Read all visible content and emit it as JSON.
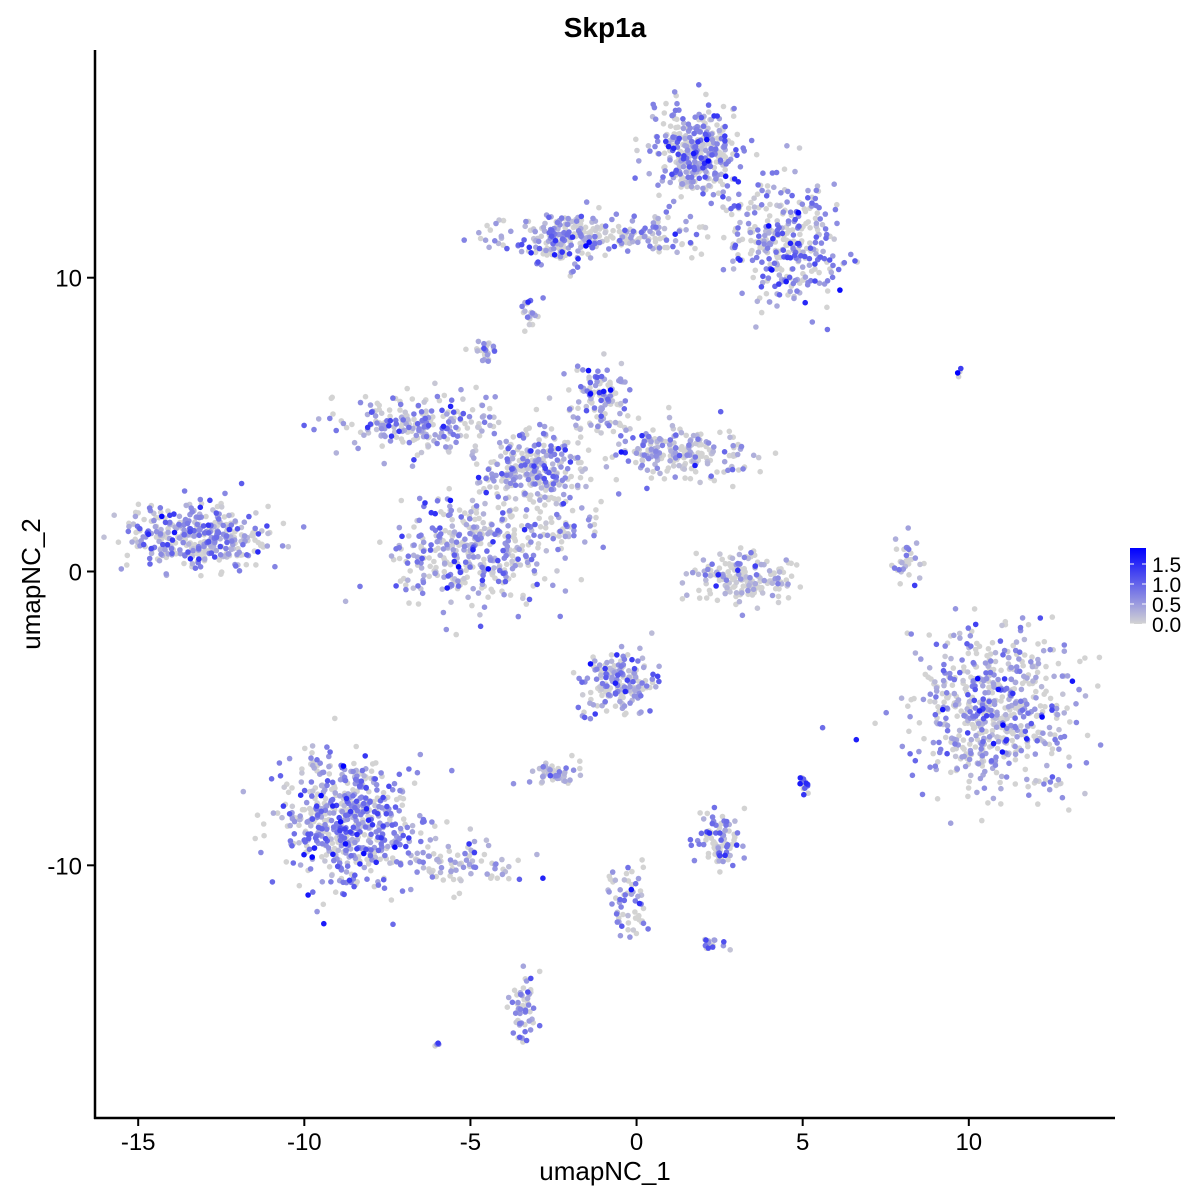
{
  "chart_data": {
    "type": "scatter",
    "title": "Skp1a",
    "xlabel": "umapNC_1",
    "ylabel": "umapNC_2",
    "xlim": [
      -16.3,
      14.4
    ],
    "ylim": [
      -18.6,
      17.75
    ],
    "xticks": [
      -15,
      -10,
      -5,
      0,
      5,
      10
    ],
    "xtick_labels": [
      "-15",
      "-10",
      "-5",
      "0",
      "5",
      "10"
    ],
    "yticks": [
      -10,
      0,
      10
    ],
    "ytick_labels": [
      "-10",
      "0",
      "10"
    ],
    "grid": false,
    "legend": {
      "placement": "right",
      "type": "colorbar",
      "min": 0.0,
      "max": 1.9,
      "ticks": [
        0.0,
        0.5,
        1.0,
        1.5
      ],
      "tick_labels": [
        "0.0",
        "0.5",
        "1.0",
        "1.5"
      ],
      "low_color": "#d3d3d3",
      "high_color": "#0000ff"
    },
    "point_color_scale": {
      "low": "#d3d3d3",
      "high": "#0000ff"
    },
    "seed": 7,
    "clusters": [
      {
        "cx": 1.8,
        "cy": 14.2,
        "sx": 0.7,
        "sy": 0.75,
        "n": 380,
        "expr": 0.6
      },
      {
        "cx": 4.5,
        "cy": 11.2,
        "sx": 0.8,
        "sy": 1.1,
        "n": 320,
        "expr": 0.6
      },
      {
        "cx": -0.6,
        "cy": 11.4,
        "sx": 1.9,
        "sy": 0.35,
        "n": 200,
        "expr": 0.45
      },
      {
        "cx": -2.2,
        "cy": 11.3,
        "sx": 0.5,
        "sy": 0.5,
        "n": 120,
        "expr": 0.6
      },
      {
        "cx": -3.2,
        "cy": 8.8,
        "sx": 0.2,
        "sy": 0.3,
        "n": 20,
        "expr": 0.5
      },
      {
        "cx": -4.5,
        "cy": 7.4,
        "sx": 0.2,
        "sy": 0.2,
        "n": 25,
        "expr": 0.5
      },
      {
        "cx": -3.2,
        "cy": 3.4,
        "sx": 0.8,
        "sy": 0.7,
        "n": 300,
        "expr": 0.5
      },
      {
        "cx": -6.6,
        "cy": 5.1,
        "sx": 1.2,
        "sy": 0.5,
        "n": 220,
        "expr": 0.45
      },
      {
        "cx": 1.3,
        "cy": 4.1,
        "sx": 1.0,
        "sy": 0.5,
        "n": 220,
        "expr": 0.3
      },
      {
        "cx": -1.2,
        "cy": 5.8,
        "sx": 0.5,
        "sy": 0.6,
        "n": 120,
        "expr": 0.5
      },
      {
        "cx": -5.0,
        "cy": 0.7,
        "sx": 1.2,
        "sy": 0.9,
        "n": 380,
        "expr": 0.5
      },
      {
        "cx": -2.2,
        "cy": 1.4,
        "sx": 0.7,
        "sy": 0.35,
        "n": 40,
        "expr": 0.5
      },
      {
        "cx": -13.2,
        "cy": 1.2,
        "sx": 1.1,
        "sy": 0.55,
        "n": 380,
        "expr": 0.55
      },
      {
        "cx": 3.2,
        "cy": -0.2,
        "sx": 0.7,
        "sy": 0.45,
        "n": 170,
        "expr": 0.2
      },
      {
        "cx": 8.1,
        "cy": 0.4,
        "sx": 0.2,
        "sy": 0.4,
        "n": 30,
        "expr": 0.4
      },
      {
        "cx": 10.7,
        "cy": -4.8,
        "sx": 1.2,
        "sy": 1.3,
        "n": 620,
        "expr": 0.45
      },
      {
        "cx": -8.7,
        "cy": -8.4,
        "sx": 1.0,
        "sy": 1.1,
        "n": 620,
        "expr": 0.65
      },
      {
        "cx": -5.3,
        "cy": -9.9,
        "sx": 1.0,
        "sy": 0.35,
        "n": 90,
        "expr": 0.45
      },
      {
        "cx": -0.5,
        "cy": -3.9,
        "sx": 0.5,
        "sy": 0.55,
        "n": 180,
        "expr": 0.55
      },
      {
        "cx": -2.5,
        "cy": -6.9,
        "sx": 0.4,
        "sy": 0.2,
        "n": 50,
        "expr": 0.4
      },
      {
        "cx": 2.5,
        "cy": -9.2,
        "sx": 0.35,
        "sy": 0.45,
        "n": 90,
        "expr": 0.65
      },
      {
        "cx": 5.1,
        "cy": -7.3,
        "sx": 0.1,
        "sy": 0.2,
        "n": 15,
        "expr": 1.2
      },
      {
        "cx": -0.2,
        "cy": -11.2,
        "sx": 0.35,
        "sy": 0.7,
        "n": 60,
        "expr": 0.6
      },
      {
        "cx": -3.4,
        "cy": -14.8,
        "sx": 0.2,
        "sy": 0.6,
        "n": 60,
        "expr": 0.7
      },
      {
        "cx": 2.2,
        "cy": -12.6,
        "sx": 0.2,
        "sy": 0.1,
        "n": 15,
        "expr": 0.6
      },
      {
        "cx": -6.0,
        "cy": -16.1,
        "sx": 0.05,
        "sy": 0.05,
        "n": 4,
        "expr": 0.8
      },
      {
        "cx": 9.8,
        "cy": 6.8,
        "sx": 0.1,
        "sy": 0.1,
        "n": 4,
        "expr": 1.3
      }
    ]
  }
}
